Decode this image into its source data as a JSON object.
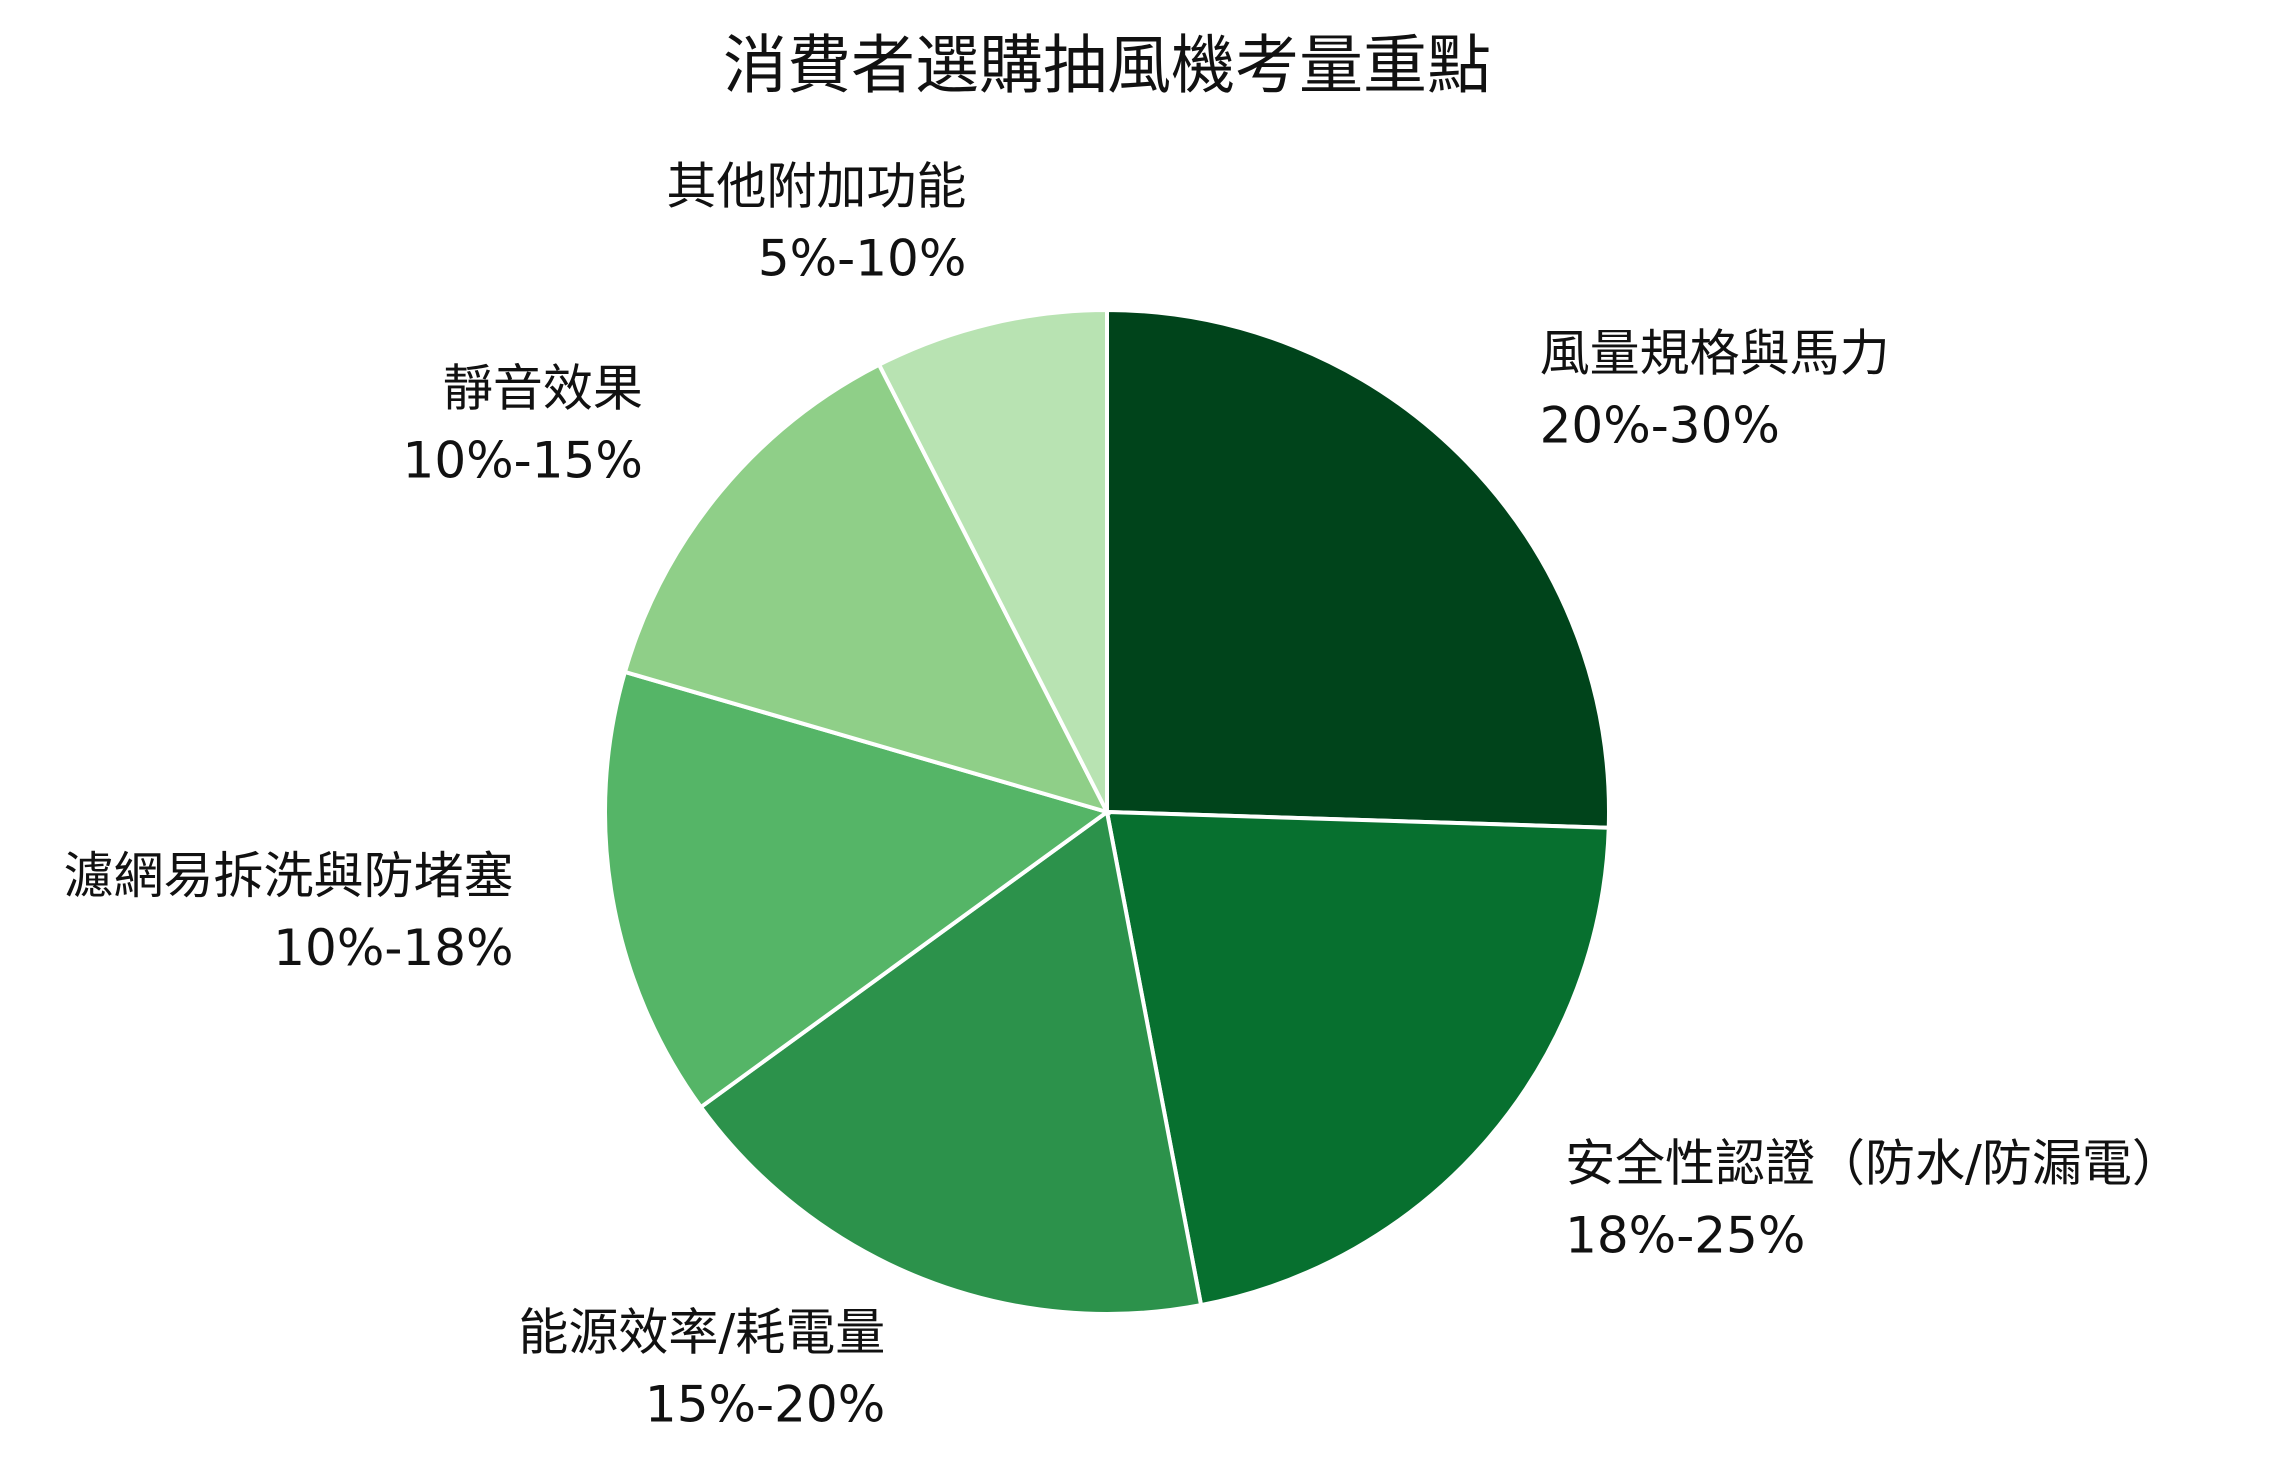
{
  "chart_data": {
    "type": "pie",
    "title": "消費者選購抽風機考量重點",
    "categories": [
      "風量規格與馬力",
      "安全性認證（防水/防漏電）",
      "能源效率/耗電量",
      "濾網易拆洗與防堵塞",
      "靜音效果",
      "其他附加功能"
    ],
    "ranges": [
      "20%-30%",
      "18%-25%",
      "15%-20%",
      "10%-18%",
      "10%-15%",
      "5%-10%"
    ],
    "values": [
      25.5,
      21.5,
      18,
      14.5,
      13,
      7.5
    ],
    "colors": [
      "#00441b",
      "#07702f",
      "#2c924b",
      "#55b567",
      "#8fcf88",
      "#b8e3b2"
    ]
  }
}
